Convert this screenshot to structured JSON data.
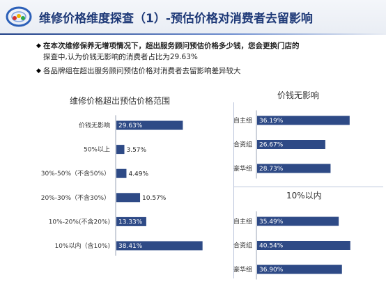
{
  "header": {
    "title": "维修价格维度探查（1）-预估价格对消费者去留影响"
  },
  "bullets": [
    {
      "bold": "在本次维修保养无增项情况下，超出服务顾问预估价格多少钱，您会更换门店的",
      "normal": "探查中,认为价钱无影响的消费者占比为29.63%"
    },
    {
      "text": "各品牌组在超出服务顾问预估价格对消费者去留影响差异较大"
    }
  ],
  "colors": {
    "bar": "#2e4a86",
    "title_blue": "#1f3a78"
  },
  "chart_data": [
    {
      "type": "bar",
      "orientation": "horizontal",
      "title": "维修价格超出预估价格范围",
      "categories": [
        "价钱无影响",
        "50%以上",
        "30%-50%（不含50%）",
        "20%-30%（不含30%）",
        "10%-20%(不含20%)",
        "10%以内（含10%)"
      ],
      "values": [
        29.63,
        3.57,
        4.49,
        10.57,
        13.33,
        38.41
      ],
      "value_labels": [
        "29.63%",
        "3.57%",
        "4.49%",
        "10.57%",
        "13.33%",
        "38.41%"
      ],
      "xlim": [
        0,
        45
      ]
    },
    {
      "type": "bar",
      "orientation": "horizontal",
      "title": "价钱无影响",
      "categories": [
        "自主组",
        "合资组",
        "豪华组"
      ],
      "values": [
        36.19,
        26.67,
        28.73
      ],
      "value_labels": [
        "36.19%",
        "26.67%",
        "28.73%"
      ],
      "xlim": [
        0,
        45
      ]
    },
    {
      "type": "bar",
      "orientation": "horizontal",
      "title": "10%以内",
      "categories": [
        "自主组",
        "合资组",
        "豪华组"
      ],
      "values": [
        35.49,
        40.54,
        36.9
      ],
      "value_labels": [
        "35.49%",
        "40.54%",
        "36.90%"
      ],
      "xlim": [
        0,
        45
      ]
    }
  ]
}
